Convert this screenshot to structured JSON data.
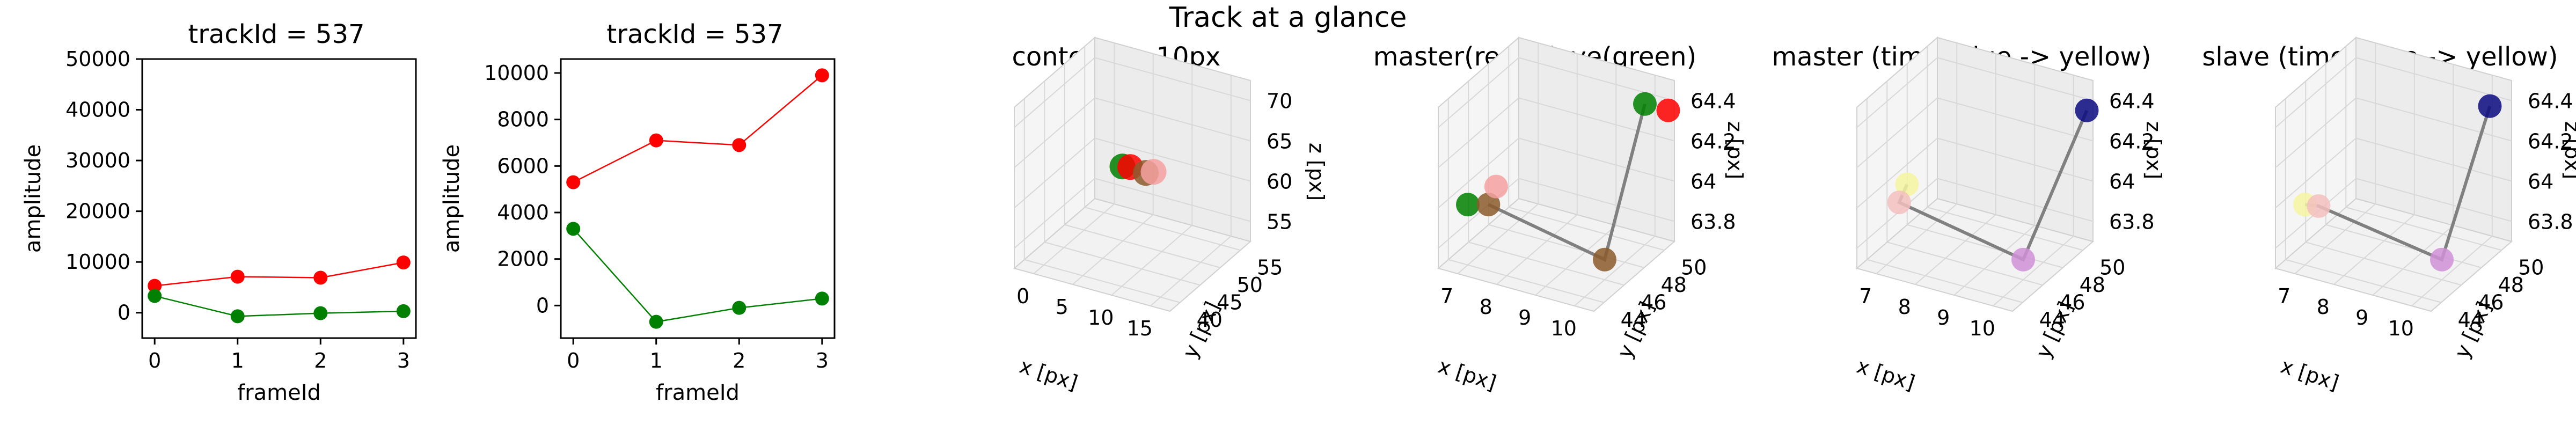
{
  "figure": {
    "suptitle": "Track at a glance"
  },
  "chart_data": [
    {
      "type": "line",
      "title": "trackId = 537",
      "xlabel": "frameId",
      "ylabel": "amplitude",
      "x": [
        0,
        1,
        2,
        3
      ],
      "ylim": [
        -5000,
        50000
      ],
      "yticks": [
        0,
        10000,
        20000,
        30000,
        40000,
        50000
      ],
      "xticks": [
        0,
        1,
        2,
        3
      ],
      "series": [
        {
          "color": "#ff0000",
          "values": [
            5300,
            7100,
            6900,
            9900
          ]
        },
        {
          "color": "#008000",
          "values": [
            3300,
            -700,
            -100,
            300
          ]
        }
      ]
    },
    {
      "type": "line",
      "title": "trackId = 537",
      "xlabel": "frameId",
      "ylabel": "amplitude",
      "x": [
        0,
        1,
        2,
        3
      ],
      "ylim": [
        -1400,
        10600
      ],
      "yticks": [
        0,
        2000,
        4000,
        6000,
        8000,
        10000
      ],
      "xticks": [
        0,
        1,
        2,
        3
      ],
      "series": [
        {
          "color": "#ff0000",
          "values": [
            5300,
            7100,
            6900,
            9900
          ]
        },
        {
          "color": "#008000",
          "values": [
            3300,
            -700,
            -100,
            300
          ]
        }
      ]
    },
    {
      "type": "scatter",
      "title": "context +- 10px",
      "xlabel": "x [px]",
      "ylabel": "y [px]",
      "zlabel": "z [px]",
      "xticks": [
        0,
        5,
        10,
        15
      ],
      "yticks": [
        40,
        45,
        50,
        55
      ],
      "zticks": [
        55,
        60,
        65,
        70
      ],
      "points": [
        {
          "x": 7,
          "y": 46,
          "z": 64.0,
          "color": "#008000"
        },
        {
          "x": 8,
          "y": 46,
          "z": 64.2,
          "color": "#ff0000"
        },
        {
          "x": 10,
          "y": 46,
          "z": 64.0,
          "color": "#8b5a2b"
        },
        {
          "x": 11,
          "y": 46,
          "z": 64.4,
          "color": "#f4a0a0"
        }
      ]
    },
    {
      "type": "scatter",
      "title": "master(red) slave(green)",
      "xlabel": "x [px]",
      "ylabel": "y [px]",
      "zlabel": "z [px]",
      "xticks": [
        7,
        8,
        9,
        10
      ],
      "yticks": [
        44,
        46,
        48,
        50
      ],
      "zticks": [
        63.8,
        64.0,
        64.2,
        64.4
      ],
      "points": [
        {
          "x": 7,
          "y": 44,
          "z": 64.0,
          "color": "#008000"
        },
        {
          "x": 7.4,
          "y": 44.5,
          "z": 64.0,
          "color": "#8b5a2b"
        },
        {
          "x": 7.6,
          "y": 44.5,
          "z": 64.1,
          "color": "#f4a0a0"
        },
        {
          "x": 10,
          "y": 46,
          "z": 63.8,
          "color": "#8b5a2b"
        },
        {
          "x": 10,
          "y": 50,
          "z": 64.4,
          "color": "#008000"
        },
        {
          "x": 10.6,
          "y": 50,
          "z": 64.4,
          "color": "#ff0000"
        }
      ]
    },
    {
      "type": "scatter",
      "title": "master (time: blue -> yellow)",
      "xlabel": "x [px]",
      "ylabel": "y [px]",
      "zlabel": "z [px]",
      "xticks": [
        7,
        8,
        9,
        10
      ],
      "yticks": [
        44,
        46,
        48,
        50
      ],
      "zticks": [
        63.8,
        64.0,
        64.2,
        64.4
      ],
      "points": [
        {
          "x": 7.4,
          "y": 44.5,
          "z": 64.1,
          "color": "#f5f5a0"
        },
        {
          "x": 7.2,
          "y": 44.5,
          "z": 64.0,
          "color": "#f4c0c0"
        },
        {
          "x": 10,
          "y": 46,
          "z": 63.8,
          "color": "#d090d8"
        },
        {
          "x": 10.6,
          "y": 50,
          "z": 64.4,
          "color": "#0a0a80"
        }
      ]
    },
    {
      "type": "scatter",
      "title": "slave (time: blue -> yellow)",
      "xlabel": "x [px]",
      "ylabel": "y [px]",
      "zlabel": "z [px]",
      "xticks": [
        7,
        8,
        9,
        10
      ],
      "yticks": [
        44,
        46,
        48,
        50
      ],
      "zticks": [
        63.8,
        64.0,
        64.2,
        64.4
      ],
      "points": [
        {
          "x": 7,
          "y": 44,
          "z": 64.0,
          "color": "#f5f5a0"
        },
        {
          "x": 7.3,
          "y": 44.2,
          "z": 64.0,
          "color": "#f4c0c0"
        },
        {
          "x": 10,
          "y": 46,
          "z": 63.8,
          "color": "#d090d8"
        },
        {
          "x": 10.2,
          "y": 50,
          "z": 64.4,
          "color": "#0a0a80"
        }
      ]
    }
  ]
}
